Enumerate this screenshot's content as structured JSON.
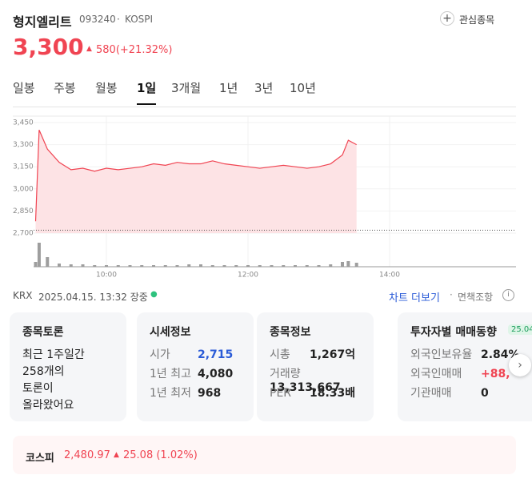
{
  "header": {
    "name": "형지엘리트",
    "code": "093240",
    "market": "KOSPI",
    "watch": "관심종목",
    "price": "3,300",
    "change": "580(+21.32%)"
  },
  "tabs": {
    "items": [
      "일봉",
      "주봉",
      "월봉",
      "1일",
      "3개월",
      "1년",
      "3년",
      "10년"
    ],
    "active": 3
  },
  "chart_data": {
    "type": "line",
    "x": [
      "09:00",
      "09:03",
      "09:10",
      "09:20",
      "09:30",
      "09:40",
      "09:50",
      "10:00",
      "10:10",
      "10:20",
      "10:30",
      "10:40",
      "10:50",
      "11:00",
      "11:10",
      "11:20",
      "11:30",
      "11:40",
      "11:50",
      "12:00",
      "12:10",
      "12:20",
      "12:30",
      "12:40",
      "12:50",
      "13:00",
      "13:10",
      "13:20",
      "13:25",
      "13:32"
    ],
    "series": [
      {
        "color": "#f04452",
        "values": [
          2780,
          3400,
          3270,
          3180,
          3130,
          3140,
          3120,
          3140,
          3130,
          3140,
          3150,
          3170,
          3160,
          3180,
          3170,
          3170,
          3190,
          3170,
          3160,
          3150,
          3140,
          3150,
          3160,
          3150,
          3140,
          3150,
          3170,
          3230,
          3330,
          3300
        ]
      },
      {
        "axis": "y2",
        "color": "#9e9e9e",
        "values": [
          6,
          30,
          12,
          4,
          3,
          3,
          2,
          2,
          2,
          2,
          2,
          2,
          2,
          2,
          3,
          3,
          2,
          2,
          2,
          2,
          2,
          2,
          2,
          2,
          2,
          2,
          3,
          6,
          7,
          5
        ]
      }
    ],
    "xlim": [
      "09:00",
      "15:45"
    ],
    "xticks": [
      "10:00",
      "12:00",
      "14:00"
    ],
    "ylim": [
      2700,
      3450
    ],
    "yticks": [
      {
        "value": 2700,
        "label": "2,700"
      },
      {
        "value": 2850,
        "label": "2,850"
      },
      {
        "value": 3000,
        "label": "3,000"
      },
      {
        "value": 3150,
        "label": "3,150"
      },
      {
        "value": 3300,
        "label": "3,300"
      },
      {
        "value": 3450,
        "label": "3,450"
      }
    ],
    "y2lim": [
      0,
      33
    ],
    "base_line": 2720,
    "area_color": "#fde3e5"
  },
  "status": {
    "exchange": "KRX",
    "time": "2025.04.15. 13:32 장중",
    "more": "차트 더보기",
    "disclaimer": "면책조항"
  },
  "cards": [
    {
      "title": "종목토론",
      "lines": [
        "최근 1주일간",
        "258개의",
        "토론이",
        "올라왔어요"
      ]
    },
    {
      "title": "시세정보",
      "rows": [
        [
          "시가",
          "2,715"
        ],
        [
          "1년 최고",
          "4,080"
        ],
        [
          "1년 최저",
          "968"
        ]
      ]
    },
    {
      "title": "종목정보",
      "rows": [
        [
          "시총",
          "1,267억"
        ],
        [
          "거래량",
          "13,313,667"
        ],
        [
          "PER",
          "18.33배"
        ]
      ]
    },
    {
      "title": "투자자별 매매동향",
      "badge": "25.04",
      "rows": [
        [
          "외국인보유율",
          "2.84%"
        ],
        [
          "외국인매매",
          "+88,"
        ],
        [
          "기관매매",
          "0"
        ]
      ]
    }
  ],
  "index": {
    "name": "코스피",
    "value": "2,480.97",
    "change": "25.08 (1.02%)"
  }
}
